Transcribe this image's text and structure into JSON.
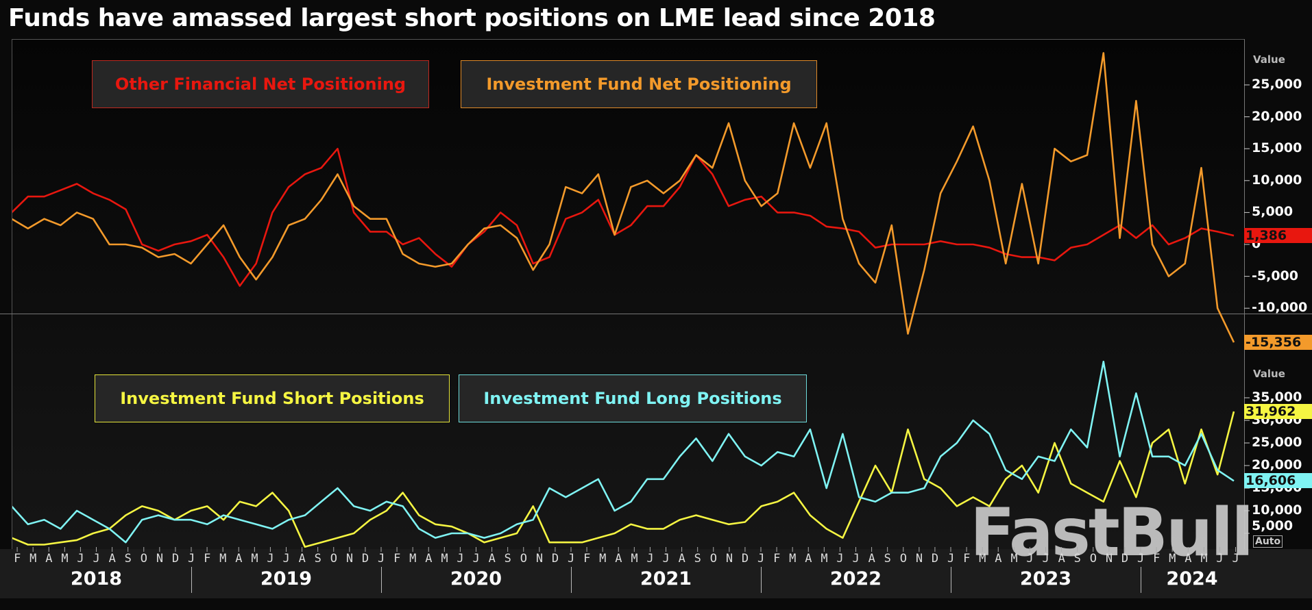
{
  "title": "Funds have amassed largest short positions on LME lead since 2018",
  "watermark": "FastBull",
  "months_row": [
    "F",
    "M",
    "A",
    "M",
    "J",
    "J",
    "A",
    "S",
    "O",
    "N",
    "D",
    "J",
    "F",
    "M",
    "A",
    "M",
    "J",
    "J",
    "A",
    "S",
    "O",
    "N",
    "D",
    "J",
    "F",
    "M",
    "A",
    "M",
    "J",
    "J",
    "A",
    "S",
    "O",
    "N",
    "D",
    "J",
    "F",
    "M",
    "A",
    "M",
    "J",
    "J",
    "A",
    "S",
    "O",
    "N",
    "D",
    "J",
    "F",
    "M",
    "A",
    "M",
    "J",
    "J",
    "A",
    "S",
    "O",
    "N",
    "D",
    "J",
    "F",
    "M",
    "A",
    "M",
    "J",
    "J",
    "A",
    "S",
    "O",
    "N",
    "D",
    "J",
    "F",
    "M",
    "A",
    "M",
    "J",
    "J"
  ],
  "years": [
    "2018",
    "2019",
    "2020",
    "2021",
    "2022",
    "2023",
    "2024"
  ],
  "auto_label": "Auto",
  "chart_data": [
    {
      "type": "line",
      "panel": "top",
      "ylabel": "Value",
      "yticks": [
        "25,000",
        "20,000",
        "15,000",
        "10,000",
        "5,000",
        "0",
        "-5,000",
        "-10,000"
      ],
      "ytick_values": [
        25000,
        20000,
        15000,
        10000,
        5000,
        0,
        -5000,
        -10000
      ],
      "grid": false,
      "legend_placement": "top-left",
      "x": [
        "2018-02",
        "2018-03",
        "2018-04",
        "2018-05",
        "2018-06",
        "2018-07",
        "2018-08",
        "2018-09",
        "2018-10",
        "2018-11",
        "2018-12",
        "2019-01",
        "2019-02",
        "2019-03",
        "2019-04",
        "2019-05",
        "2019-06",
        "2019-07",
        "2019-08",
        "2019-09",
        "2019-10",
        "2019-11",
        "2019-12",
        "2020-01",
        "2020-02",
        "2020-03",
        "2020-04",
        "2020-05",
        "2020-06",
        "2020-07",
        "2020-08",
        "2020-09",
        "2020-10",
        "2020-11",
        "2020-12",
        "2021-01",
        "2021-02",
        "2021-03",
        "2021-04",
        "2021-05",
        "2021-06",
        "2021-07",
        "2021-08",
        "2021-09",
        "2021-10",
        "2021-11",
        "2021-12",
        "2022-01",
        "2022-02",
        "2022-03",
        "2022-04",
        "2022-05",
        "2022-06",
        "2022-07",
        "2022-08",
        "2022-09",
        "2022-10",
        "2022-11",
        "2022-12",
        "2023-01",
        "2023-02",
        "2023-03",
        "2023-04",
        "2023-05",
        "2023-06",
        "2023-07",
        "2023-08",
        "2023-09",
        "2023-10",
        "2023-11",
        "2023-12",
        "2024-01",
        "2024-02",
        "2024-03",
        "2024-04",
        "2024-05"
      ],
      "series": [
        {
          "name": "Other Financial Net Positioning",
          "color": "#e8170f",
          "last_label": "1,386",
          "values": [
            5000,
            7500,
            7500,
            8500,
            9500,
            8000,
            7000,
            5500,
            0,
            -1000,
            0,
            500,
            1500,
            -2000,
            -6500,
            -3000,
            5000,
            9000,
            11000,
            12000,
            15000,
            5000,
            2000,
            2000,
            0,
            1000,
            -1500,
            -3500,
            0,
            2000,
            5000,
            3000,
            -3000,
            -2000,
            4000,
            5000,
            7000,
            1500,
            3000,
            6000,
            6000,
            9000,
            14000,
            11000,
            6000,
            7000,
            7500,
            5000,
            5000,
            4500,
            2800,
            2500,
            2000,
            -500,
            0,
            0,
            0,
            500,
            0,
            0,
            -500,
            -1500,
            -2000,
            -2000,
            -2500,
            -500,
            0,
            1500,
            3000,
            1000,
            3000,
            0,
            1000,
            2500,
            2000,
            1386
          ]
        },
        {
          "name": "Investment Fund Net Positioning",
          "color": "#f39a2b",
          "last_label": "-15,356",
          "values": [
            4000,
            2500,
            4000,
            3000,
            5000,
            4000,
            0,
            0,
            -500,
            -2000,
            -1500,
            -3000,
            0,
            3000,
            -2000,
            -5500,
            -2000,
            3000,
            4000,
            7000,
            11000,
            6000,
            4000,
            4000,
            -1500,
            -3000,
            -3500,
            -3000,
            0,
            2500,
            3000,
            1000,
            -4000,
            0,
            9000,
            8000,
            11000,
            1500,
            9000,
            10000,
            8000,
            10000,
            14000,
            12000,
            19000,
            10000,
            6000,
            8000,
            19000,
            12000,
            19000,
            4000,
            -3000,
            -6000,
            3000,
            -14000,
            -4000,
            8000,
            13000,
            18500,
            10000,
            -3000,
            9500,
            -3000,
            15000,
            13000,
            14000,
            30000,
            1000,
            22500,
            0,
            -5000,
            -3000,
            12000,
            -10000,
            -15356
          ]
        }
      ]
    },
    {
      "type": "line",
      "panel": "bottom",
      "ylabel": "Value",
      "yticks": [
        "35,000",
        "30,000",
        "25,000",
        "20,000",
        "15,000",
        "10,000",
        "5,000"
      ],
      "ytick_values": [
        35000,
        30000,
        25000,
        20000,
        15000,
        10000,
        5000
      ],
      "grid": false,
      "legend_placement": "top-left",
      "x": [
        "2018-02",
        "2018-03",
        "2018-04",
        "2018-05",
        "2018-06",
        "2018-07",
        "2018-08",
        "2018-09",
        "2018-10",
        "2018-11",
        "2018-12",
        "2019-01",
        "2019-02",
        "2019-03",
        "2019-04",
        "2019-05",
        "2019-06",
        "2019-07",
        "2019-08",
        "2019-09",
        "2019-10",
        "2019-11",
        "2019-12",
        "2020-01",
        "2020-02",
        "2020-03",
        "2020-04",
        "2020-05",
        "2020-06",
        "2020-07",
        "2020-08",
        "2020-09",
        "2020-10",
        "2020-11",
        "2020-12",
        "2021-01",
        "2021-02",
        "2021-03",
        "2021-04",
        "2021-05",
        "2021-06",
        "2021-07",
        "2021-08",
        "2021-09",
        "2021-10",
        "2021-11",
        "2021-12",
        "2022-01",
        "2022-02",
        "2022-03",
        "2022-04",
        "2022-05",
        "2022-06",
        "2022-07",
        "2022-08",
        "2022-09",
        "2022-10",
        "2022-11",
        "2022-12",
        "2023-01",
        "2023-02",
        "2023-03",
        "2023-04",
        "2023-05",
        "2023-06",
        "2023-07",
        "2023-08",
        "2023-09",
        "2023-10",
        "2023-11",
        "2023-12",
        "2024-01",
        "2024-02",
        "2024-03",
        "2024-04",
        "2024-05"
      ],
      "series": [
        {
          "name": "Investment Fund Short Positions",
          "color": "#f5f542",
          "last_label": "31,962",
          "values": [
            4000,
            2500,
            2500,
            3000,
            3500,
            5000,
            6000,
            9000,
            11000,
            10000,
            8000,
            10000,
            11000,
            8000,
            12000,
            11000,
            14000,
            10000,
            2000,
            3000,
            4000,
            5000,
            8000,
            10000,
            14000,
            9000,
            7000,
            6500,
            5000,
            3000,
            4000,
            5000,
            11000,
            3000,
            3000,
            3000,
            4000,
            5000,
            7000,
            6000,
            6000,
            8000,
            9000,
            8000,
            7000,
            7500,
            11000,
            12000,
            14000,
            9000,
            6000,
            4000,
            12000,
            20000,
            14000,
            28000,
            17000,
            15000,
            11000,
            13000,
            11000,
            17000,
            20000,
            14000,
            25000,
            16000,
            14000,
            12000,
            21000,
            13000,
            25000,
            28000,
            16000,
            28000,
            18000,
            31962
          ]
        },
        {
          "name": "Investment Fund Long Positions",
          "color": "#7ff3f3",
          "last_label": "16,606",
          "values": [
            11000,
            7000,
            8000,
            6000,
            10000,
            8000,
            6000,
            3000,
            8000,
            9000,
            8000,
            8000,
            7000,
            9000,
            8000,
            7000,
            6000,
            8000,
            9000,
            12000,
            15000,
            11000,
            10000,
            12000,
            11000,
            6000,
            4000,
            5000,
            5000,
            4000,
            5000,
            7000,
            8000,
            15000,
            13000,
            15000,
            17000,
            10000,
            12000,
            17000,
            17000,
            22000,
            26000,
            21000,
            27000,
            22000,
            20000,
            23000,
            22000,
            28000,
            15000,
            27000,
            13000,
            12000,
            14000,
            14000,
            15000,
            22000,
            25000,
            30000,
            27000,
            19000,
            17000,
            22000,
            21000,
            28000,
            24000,
            43000,
            22000,
            36000,
            22000,
            22000,
            20000,
            27000,
            19000,
            16606
          ]
        }
      ]
    }
  ]
}
